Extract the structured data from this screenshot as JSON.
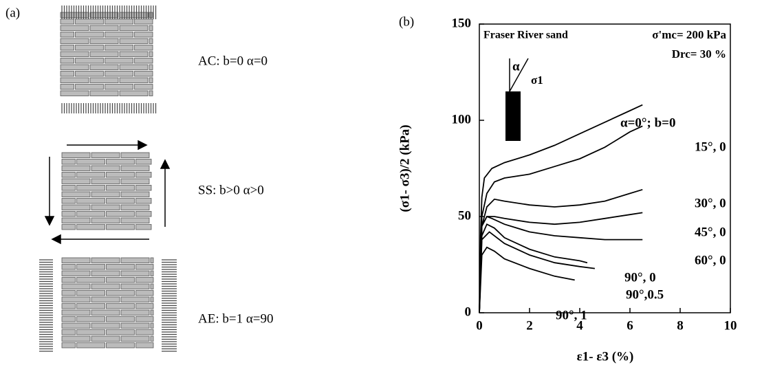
{
  "panel_a": {
    "label": "(a)",
    "cases": [
      "AC:  b=0   α=0",
      "SS:  b>0   α>0",
      "AE:  b=1   α=90"
    ]
  },
  "chart_data": {
    "type": "line",
    "panel_label": "(b)",
    "x_label": "ε1- ε3  (%)",
    "y_label": "(σ1- σ3)/2  (kPa)",
    "annotations": {
      "material": "Fraser River sand",
      "stress": "σ'mc= 200 kPa",
      "density": "Drc= 30 %",
      "angle": "α",
      "sigma": "σ1"
    },
    "xlim": [
      0,
      10
    ],
    "xticks": [
      0,
      2,
      4,
      6,
      8,
      10
    ],
    "ylim": [
      0,
      150
    ],
    "yticks": [
      0,
      50,
      100,
      150
    ],
    "series": [
      {
        "name": "α=0°; b=0",
        "color": "#000000",
        "x": [
          0,
          0.05,
          0.1,
          0.2,
          0.5,
          1,
          2,
          3,
          4,
          5,
          6,
          6.5
        ],
        "values": [
          0,
          40,
          60,
          70,
          75,
          78,
          82,
          87,
          93,
          99,
          105,
          108
        ]
      },
      {
        "name": "15°, 0",
        "color": "#000000",
        "x": [
          0,
          0.1,
          0.3,
          0.6,
          1,
          2,
          3,
          4,
          5,
          6,
          6.5
        ],
        "values": [
          0,
          50,
          62,
          68,
          70,
          72,
          76,
          80,
          86,
          94,
          97
        ]
      },
      {
        "name": "30°, 0",
        "color": "#000000",
        "x": [
          0,
          0.1,
          0.3,
          0.6,
          1,
          2,
          3,
          4,
          5,
          6,
          6.5
        ],
        "values": [
          0,
          45,
          55,
          59,
          58,
          56,
          55,
          56,
          58,
          62,
          64
        ]
      },
      {
        "name": "45°, 0",
        "color": "#000000",
        "x": [
          0,
          0.1,
          0.3,
          0.6,
          1,
          2,
          3,
          4,
          5,
          6,
          6.5
        ],
        "values": [
          0,
          45,
          50,
          50,
          49,
          47,
          46,
          47,
          49,
          51,
          52
        ]
      },
      {
        "name": "60°, 0",
        "color": "#000000",
        "x": [
          0,
          0.1,
          0.3,
          0.5,
          1,
          2,
          3,
          4,
          5,
          6,
          6.5
        ],
        "values": [
          0,
          45,
          50,
          49,
          46,
          42,
          40,
          39,
          38,
          38,
          38
        ]
      },
      {
        "name": "90°, 0",
        "color": "#000000",
        "x": [
          0,
          0.1,
          0.3,
          0.6,
          1,
          2,
          3,
          4,
          4.3
        ],
        "values": [
          0,
          40,
          46,
          44,
          39,
          33,
          29,
          27,
          26
        ]
      },
      {
        "name": "90°,0.5",
        "color": "#000000",
        "x": [
          0,
          0.1,
          0.4,
          1,
          2,
          3,
          4,
          4.6
        ],
        "values": [
          0,
          38,
          42,
          36,
          30,
          26,
          24,
          23
        ]
      },
      {
        "name": "90°, 1",
        "color": "#000000",
        "x": [
          0,
          0.1,
          0.3,
          0.6,
          1,
          2,
          3,
          3.8
        ],
        "values": [
          0,
          30,
          34,
          32,
          28,
          23,
          19,
          17
        ]
      }
    ]
  }
}
